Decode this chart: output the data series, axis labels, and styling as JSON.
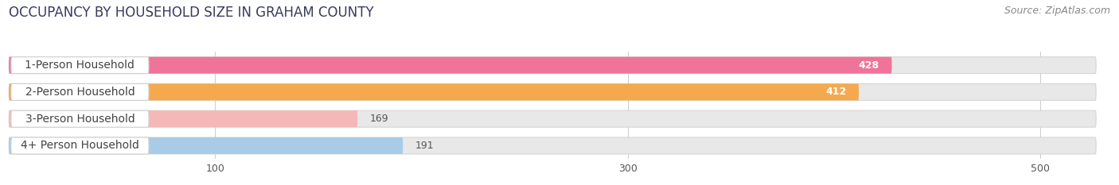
{
  "title": "OCCUPANCY BY HOUSEHOLD SIZE IN GRAHAM COUNTY",
  "source": "Source: ZipAtlas.com",
  "categories": [
    "1-Person Household",
    "2-Person Household",
    "3-Person Household",
    "4+ Person Household"
  ],
  "values": [
    428,
    412,
    169,
    191
  ],
  "bar_colors": [
    "#f0739a",
    "#f5a94e",
    "#f5b8b8",
    "#a8cce8"
  ],
  "bg_color": "#ffffff",
  "bar_bg_color": "#e8e8e8",
  "xlim": [
    0,
    530
  ],
  "xticks": [
    100,
    300,
    500
  ],
  "title_fontsize": 12,
  "source_fontsize": 9,
  "label_fontsize": 10,
  "value_fontsize": 9,
  "tick_fontsize": 9,
  "bar_height": 0.62,
  "bar_gap": 1.0
}
